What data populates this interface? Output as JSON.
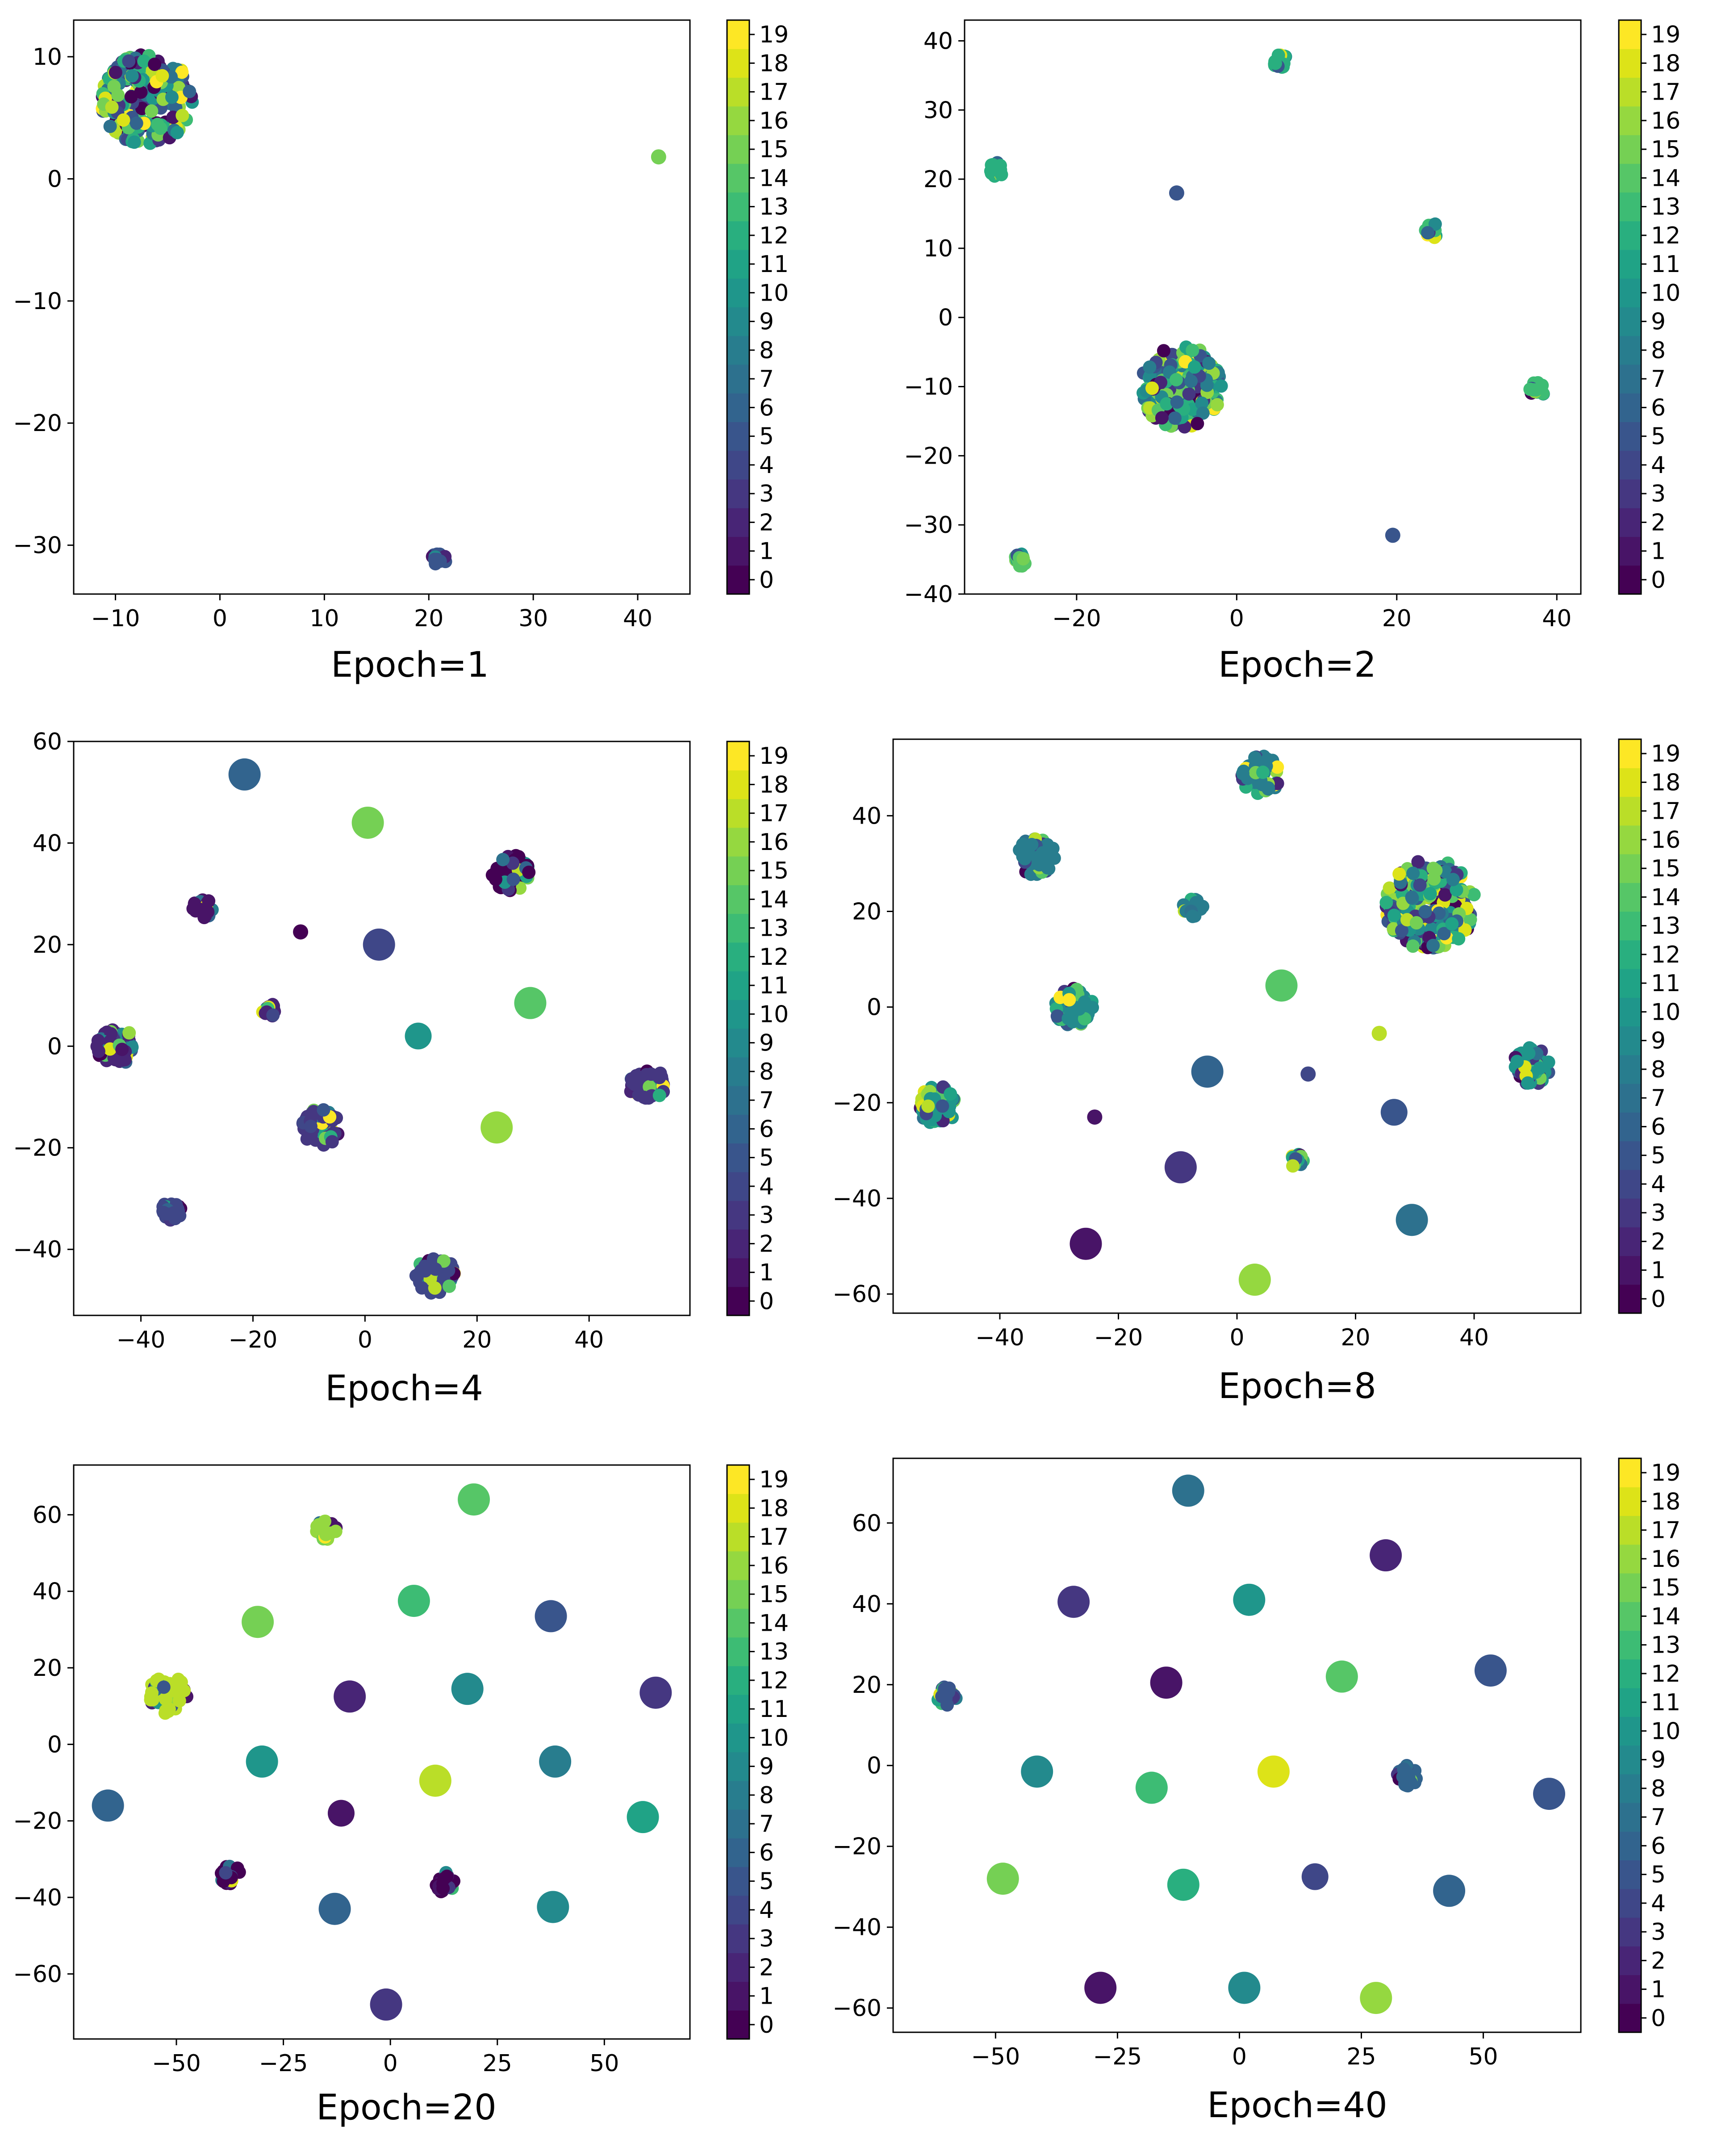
{
  "colors": {
    "viridis": [
      "#440154",
      "#481467",
      "#482576",
      "#453781",
      "#3f4788",
      "#39558c",
      "#32648e",
      "#2d718e",
      "#287d8e",
      "#238a8d",
      "#1f968b",
      "#20a386",
      "#29af7f",
      "#3dbc74",
      "#56c667",
      "#75d054",
      "#95d840",
      "#bade28",
      "#dde318",
      "#fde725"
    ]
  },
  "colorbar": {
    "ticks": [
      "0",
      "1",
      "2",
      "3",
      "4",
      "5",
      "6",
      "7",
      "8",
      "9",
      "10",
      "11",
      "12",
      "13",
      "14",
      "15",
      "16",
      "17",
      "18",
      "19"
    ]
  },
  "chart_data": [
    {
      "type": "scatter",
      "title": "Epoch=1",
      "xlim": [
        -14,
        45
      ],
      "ylim": [
        -34,
        13
      ],
      "xticks": [
        {
          "v": -10,
          "label": "−10"
        },
        {
          "v": 0,
          "label": "0"
        },
        {
          "v": 10,
          "label": "10"
        },
        {
          "v": 20,
          "label": "20"
        },
        {
          "v": 30,
          "label": "30"
        },
        {
          "v": 40,
          "label": "40"
        }
      ],
      "yticks": [
        {
          "v": 10,
          "label": "10"
        },
        {
          "v": 0,
          "label": "0"
        },
        {
          "v": -10,
          "label": "−10"
        },
        {
          "v": -20,
          "label": "−20"
        },
        {
          "v": -30,
          "label": "−30"
        }
      ],
      "clusters": [
        {
          "x": -7,
          "y": 6.5,
          "size": "huge",
          "label": "mixed"
        },
        {
          "x": 21,
          "y": -31.2,
          "size": "small",
          "label": "mixed"
        },
        {
          "x": 42,
          "y": 1.8,
          "size": "tiny",
          "label": 15
        }
      ]
    },
    {
      "type": "scatter",
      "title": "Epoch=2",
      "xlim": [
        -34,
        43
      ],
      "ylim": [
        -40,
        43
      ],
      "xticks": [
        {
          "v": -20,
          "label": "−20"
        },
        {
          "v": 0,
          "label": "0"
        },
        {
          "v": 20,
          "label": "20"
        },
        {
          "v": 40,
          "label": "40"
        }
      ],
      "yticks": [
        {
          "v": 40,
          "label": "40"
        },
        {
          "v": 30,
          "label": "30"
        },
        {
          "v": 20,
          "label": "20"
        },
        {
          "v": 10,
          "label": "10"
        },
        {
          "v": 0,
          "label": "0"
        },
        {
          "v": -10,
          "label": "−10"
        },
        {
          "v": -20,
          "label": "−20"
        },
        {
          "v": -30,
          "label": "−30"
        },
        {
          "v": -40,
          "label": "−40"
        }
      ],
      "clusters": [
        {
          "x": 5.5,
          "y": 37,
          "size": "small",
          "label": "mixed"
        },
        {
          "x": -30,
          "y": 21.5,
          "size": "small",
          "label": "mixed"
        },
        {
          "x": -7.5,
          "y": 18,
          "size": "tiny",
          "label": 5
        },
        {
          "x": 24.5,
          "y": 12.5,
          "size": "small",
          "label": "mixed"
        },
        {
          "x": -7,
          "y": -10,
          "size": "big",
          "label": "mixed"
        },
        {
          "x": 37.5,
          "y": -10.5,
          "size": "small",
          "label": "mixed"
        },
        {
          "x": 19.5,
          "y": -31.5,
          "size": "tiny",
          "label": 5
        },
        {
          "x": -27,
          "y": -35,
          "size": "small",
          "label": "mixed"
        }
      ]
    },
    {
      "type": "scatter",
      "title": "Epoch=4",
      "xlim": [
        -52,
        58
      ],
      "ylim": [
        -53,
        60
      ],
      "xticks": [
        {
          "v": -40,
          "label": "−40"
        },
        {
          "v": -20,
          "label": "−20"
        },
        {
          "v": 0,
          "label": "0"
        },
        {
          "v": 20,
          "label": "20"
        },
        {
          "v": 40,
          "label": "40"
        }
      ],
      "yticks": [
        {
          "v": 60,
          "label": "60"
        },
        {
          "v": 40,
          "label": "40"
        },
        {
          "v": 20,
          "label": "20"
        },
        {
          "v": 0,
          "label": "0"
        },
        {
          "v": -20,
          "label": "−20"
        },
        {
          "v": -40,
          "label": "−40"
        }
      ],
      "clusters": [
        {
          "x": -21.5,
          "y": 53.5,
          "size": "medium",
          "label": 6
        },
        {
          "x": 0.5,
          "y": 44,
          "size": "medium",
          "label": 15
        },
        {
          "x": 26,
          "y": 34,
          "size": "large",
          "label": "mixed"
        },
        {
          "x": -29,
          "y": 27,
          "size": "medium",
          "label": "mixed"
        },
        {
          "x": -11.5,
          "y": 22.5,
          "size": "tiny",
          "label": 0
        },
        {
          "x": 2.5,
          "y": 20,
          "size": "medium",
          "label": 4
        },
        {
          "x": -17,
          "y": 7,
          "size": "small",
          "label": "mixed"
        },
        {
          "x": 29.5,
          "y": 8.5,
          "size": "medium",
          "label": 14
        },
        {
          "x": 9.5,
          "y": 2,
          "size": "small",
          "label": 10
        },
        {
          "x": -44.5,
          "y": 0,
          "size": "large",
          "label": "mixed"
        },
        {
          "x": 50.5,
          "y": -7.5,
          "size": "large",
          "label": "mixed"
        },
        {
          "x": -8,
          "y": -16,
          "size": "large",
          "label": "mixed"
        },
        {
          "x": 23.5,
          "y": -16,
          "size": "medium",
          "label": 16
        },
        {
          "x": -34.5,
          "y": -32.5,
          "size": "medium",
          "label": "mixed"
        },
        {
          "x": 12.5,
          "y": -45,
          "size": "large",
          "label": "mixed"
        }
      ]
    },
    {
      "type": "scatter",
      "title": "Epoch=8",
      "xlim": [
        -58,
        58
      ],
      "ylim": [
        -64,
        56
      ],
      "xticks": [
        {
          "v": -40,
          "label": "−40"
        },
        {
          "v": -20,
          "label": "−20"
        },
        {
          "v": 0,
          "label": "0"
        },
        {
          "v": 20,
          "label": "20"
        },
        {
          "v": 40,
          "label": "40"
        }
      ],
      "yticks": [
        {
          "v": 40,
          "label": "40"
        },
        {
          "v": 20,
          "label": "20"
        },
        {
          "v": 0,
          "label": "0"
        },
        {
          "v": -20,
          "label": "−20"
        },
        {
          "v": -40,
          "label": "−40"
        },
        {
          "v": -60,
          "label": "−60"
        }
      ],
      "clusters": [
        {
          "x": 4,
          "y": 48.5,
          "size": "large",
          "label": "mixed"
        },
        {
          "x": -34,
          "y": 31.5,
          "size": "large",
          "label": "mixed"
        },
        {
          "x": -7.5,
          "y": 21,
          "size": "medium",
          "label": "mixed"
        },
        {
          "x": 32.5,
          "y": 21.5,
          "size": "huge",
          "label": "mixed"
        },
        {
          "x": 7.5,
          "y": 4.5,
          "size": "medium",
          "label": 14
        },
        {
          "x": -27.5,
          "y": 0,
          "size": "large",
          "label": "mixed"
        },
        {
          "x": 24,
          "y": -5.5,
          "size": "tiny",
          "label": 17
        },
        {
          "x": -5,
          "y": -13.5,
          "size": "medium",
          "label": 6
        },
        {
          "x": 12,
          "y": -14,
          "size": "tiny",
          "label": 4
        },
        {
          "x": 49.5,
          "y": -12.5,
          "size": "large",
          "label": "mixed"
        },
        {
          "x": -50.5,
          "y": -20.5,
          "size": "large",
          "label": "mixed"
        },
        {
          "x": 26.5,
          "y": -22,
          "size": "small",
          "label": 5
        },
        {
          "x": -24,
          "y": -23,
          "size": "tiny",
          "label": 1
        },
        {
          "x": 10,
          "y": -32,
          "size": "small",
          "label": "mixed"
        },
        {
          "x": -9.5,
          "y": -33.5,
          "size": "medium",
          "label": 3
        },
        {
          "x": 29.5,
          "y": -44.5,
          "size": "medium",
          "label": 7
        },
        {
          "x": -25.5,
          "y": -49.5,
          "size": "medium",
          "label": 1
        },
        {
          "x": 3,
          "y": -57,
          "size": "medium",
          "label": 16
        }
      ]
    },
    {
      "type": "scatter",
      "title": "Epoch=20",
      "xlim": [
        -74,
        70
      ],
      "ylim": [
        -77,
        73
      ],
      "xticks": [
        {
          "v": -50,
          "label": "−50"
        },
        {
          "v": -25,
          "label": "−25"
        },
        {
          "v": 0,
          "label": "0"
        },
        {
          "v": 25,
          "label": "25"
        },
        {
          "v": 50,
          "label": "50"
        }
      ],
      "yticks": [
        {
          "v": 60,
          "label": "60"
        },
        {
          "v": 40,
          "label": "40"
        },
        {
          "v": 20,
          "label": "20"
        },
        {
          "v": 0,
          "label": "0"
        },
        {
          "v": -20,
          "label": "−20"
        },
        {
          "v": -40,
          "label": "−40"
        },
        {
          "v": -60,
          "label": "−60"
        }
      ],
      "clusters": [
        {
          "x": 19.5,
          "y": 64,
          "size": "medium",
          "label": 14
        },
        {
          "x": -15,
          "y": 56,
          "size": "medium",
          "label": "mixed"
        },
        {
          "x": 5.5,
          "y": 37.5,
          "size": "medium",
          "label": 13
        },
        {
          "x": 37.5,
          "y": 33.5,
          "size": "medium",
          "label": 5
        },
        {
          "x": -31,
          "y": 32,
          "size": "medium",
          "label": 15
        },
        {
          "x": -52,
          "y": 13,
          "size": "large",
          "label": "mixed"
        },
        {
          "x": -9.5,
          "y": 12.5,
          "size": "medium",
          "label": 2
        },
        {
          "x": 18,
          "y": 14.5,
          "size": "medium",
          "label": 9
        },
        {
          "x": 62,
          "y": 13.5,
          "size": "medium",
          "label": 3
        },
        {
          "x": -30,
          "y": -4.5,
          "size": "medium",
          "label": 10
        },
        {
          "x": 38.5,
          "y": -4.5,
          "size": "medium",
          "label": 8
        },
        {
          "x": 10.5,
          "y": -9.5,
          "size": "medium",
          "label": 17
        },
        {
          "x": -66,
          "y": -16,
          "size": "medium",
          "label": 6
        },
        {
          "x": -11.5,
          "y": -18,
          "size": "small",
          "label": 1
        },
        {
          "x": 59,
          "y": -19,
          "size": "medium",
          "label": 11
        },
        {
          "x": -37.5,
          "y": -34,
          "size": "medium",
          "label": "mixed"
        },
        {
          "x": 12.5,
          "y": -36,
          "size": "medium",
          "label": "mixed"
        },
        {
          "x": -13,
          "y": -43,
          "size": "medium",
          "label": 6
        },
        {
          "x": 38,
          "y": -42.5,
          "size": "medium",
          "label": 9
        },
        {
          "x": -1,
          "y": -68,
          "size": "medium",
          "label": 3
        }
      ]
    },
    {
      "type": "scatter",
      "title": "Epoch=40",
      "xlim": [
        -71,
        70
      ],
      "ylim": [
        -66,
        76
      ],
      "xticks": [
        {
          "v": -50,
          "label": "−50"
        },
        {
          "v": -25,
          "label": "−25"
        },
        {
          "v": 0,
          "label": "0"
        },
        {
          "v": 25,
          "label": "25"
        },
        {
          "v": 50,
          "label": "50"
        }
      ],
      "yticks": [
        {
          "v": 60,
          "label": "60"
        },
        {
          "v": 40,
          "label": "40"
        },
        {
          "v": 20,
          "label": "20"
        },
        {
          "v": 0,
          "label": "0"
        },
        {
          "v": -20,
          "label": "−20"
        },
        {
          "v": -40,
          "label": "−40"
        },
        {
          "v": -60,
          "label": "−60"
        }
      ],
      "clusters": [
        {
          "x": -10.5,
          "y": 68,
          "size": "medium",
          "label": 7
        },
        {
          "x": 30,
          "y": 52,
          "size": "medium",
          "label": 2
        },
        {
          "x": 2,
          "y": 41,
          "size": "medium",
          "label": 10
        },
        {
          "x": -34,
          "y": 40.5,
          "size": "medium",
          "label": 3
        },
        {
          "x": -15,
          "y": 20.5,
          "size": "medium",
          "label": 1
        },
        {
          "x": 21,
          "y": 22,
          "size": "medium",
          "label": 14
        },
        {
          "x": 51.5,
          "y": 23.5,
          "size": "medium",
          "label": 5
        },
        {
          "x": -60,
          "y": 17.5,
          "size": "medium",
          "label": "mixed"
        },
        {
          "x": -41.5,
          "y": -1.5,
          "size": "medium",
          "label": 9
        },
        {
          "x": 7,
          "y": -1.5,
          "size": "medium",
          "label": 18
        },
        {
          "x": 34.5,
          "y": -2.5,
          "size": "medium",
          "label": "mixed"
        },
        {
          "x": -18,
          "y": -5.5,
          "size": "medium",
          "label": 13
        },
        {
          "x": 63.5,
          "y": -7,
          "size": "medium",
          "label": 5
        },
        {
          "x": -48.5,
          "y": -28,
          "size": "medium",
          "label": 15
        },
        {
          "x": -11.5,
          "y": -29.5,
          "size": "medium",
          "label": 12
        },
        {
          "x": 15.5,
          "y": -27.5,
          "size": "small",
          "label": 4
        },
        {
          "x": 43,
          "y": -31,
          "size": "medium",
          "label": 6
        },
        {
          "x": -28.5,
          "y": -55,
          "size": "medium",
          "label": 1
        },
        {
          "x": 1,
          "y": -55,
          "size": "medium",
          "label": 9
        },
        {
          "x": 28,
          "y": -57.5,
          "size": "medium",
          "label": 16
        }
      ]
    }
  ]
}
